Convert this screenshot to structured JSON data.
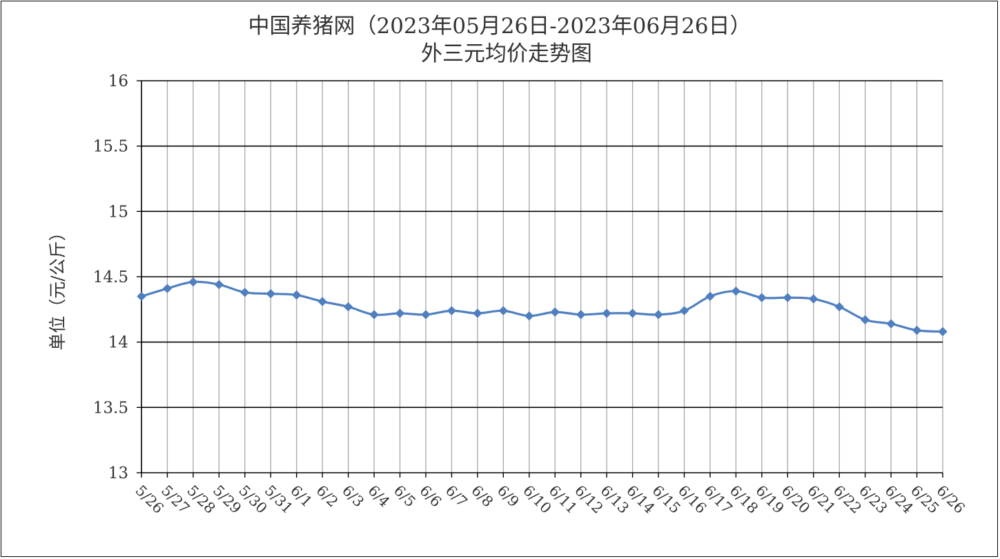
{
  "chart_data": {
    "type": "line",
    "title": "中国养猪网（2023年05月26日-2023年06月26日）",
    "subtitle": "外三元均价走势图",
    "xlabel": "",
    "ylabel": "单位（元/公斤）",
    "ylim": [
      13,
      16
    ],
    "yticks": [
      "13",
      "13.5",
      "14",
      "14.5",
      "15",
      "15.5",
      "16"
    ],
    "grid": true,
    "legend": "none",
    "line_color": "#4f7fc0",
    "categories": [
      "5/26",
      "5/27",
      "5/28",
      "5/29",
      "5/30",
      "5/31",
      "6/1",
      "6/2",
      "6/3",
      "6/4",
      "6/5",
      "6/6",
      "6/7",
      "6/8",
      "6/9",
      "6/10",
      "6/11",
      "6/12",
      "6/13",
      "6/14",
      "6/15",
      "6/16",
      "6/17",
      "6/18",
      "6/19",
      "6/20",
      "6/21",
      "6/22",
      "6/23",
      "6/24",
      "6/25",
      "6/26"
    ],
    "series": [
      {
        "values": [
          14.35,
          14.41,
          14.46,
          14.44,
          14.38,
          14.37,
          14.36,
          14.31,
          14.27,
          14.21,
          14.22,
          14.21,
          14.24,
          14.22,
          14.24,
          14.2,
          14.23,
          14.21,
          14.22,
          14.22,
          14.21,
          14.24,
          14.35,
          14.39,
          14.34,
          14.34,
          14.33,
          14.27,
          14.17,
          14.14,
          14.09,
          14.08
        ]
      }
    ]
  }
}
